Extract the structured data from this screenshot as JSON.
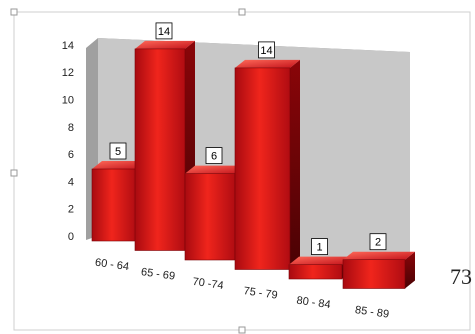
{
  "chart_data": {
    "type": "bar3d",
    "categories": [
      "60 - 64",
      "65 - 69",
      "70 -74",
      "75 - 79",
      "80 - 84",
      "85 - 89"
    ],
    "values": [
      5,
      14,
      6,
      14,
      1,
      2
    ],
    "color": "#d9141b",
    "ylim": [
      0,
      14
    ],
    "yticks": [
      0,
      2,
      4,
      6,
      8,
      10,
      12,
      14
    ],
    "annotation": "73"
  }
}
